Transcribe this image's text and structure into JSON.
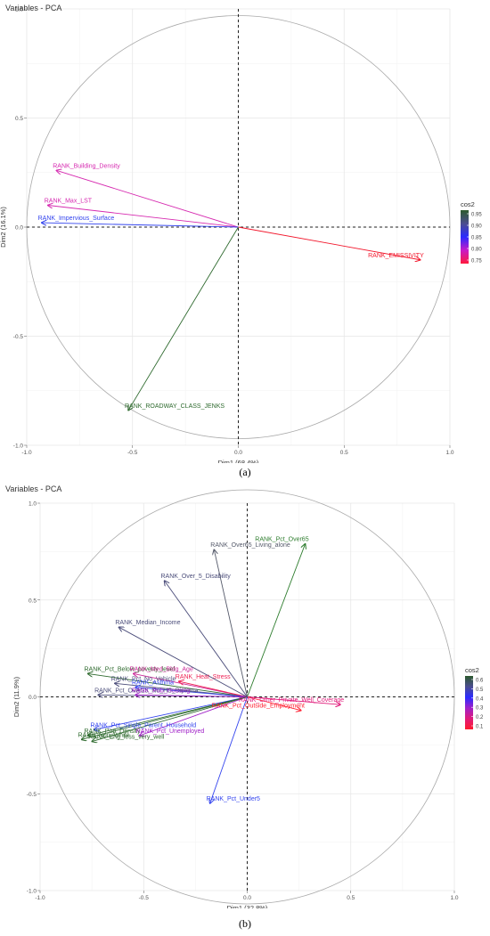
{
  "figure": {
    "caption_a": "(a)",
    "caption_b": "(b)"
  },
  "chart_data": [
    {
      "type": "scatter",
      "title": "Variables - PCA",
      "xlabel": "Dim1 (68.4%)",
      "ylabel": "Dim2 (16.1%)",
      "xlim": [
        -1.0,
        1.0
      ],
      "ylim": [
        -1.0,
        1.0
      ],
      "x_ticks": [
        "-1.0",
        "-0.5",
        "0.0",
        "0.5",
        "1.0"
      ],
      "y_ticks": [
        "-1.0",
        "-0.5",
        "0.0",
        "0.5",
        "1.0"
      ],
      "grid": true,
      "legend": {
        "title": "cos2",
        "placement": "right",
        "labels": [
          "0.95",
          "0.90",
          "0.85",
          "0.80",
          "0.75"
        ],
        "colors": [
          "#2d5a2d",
          "#4b4d8f",
          "#2a2aff",
          "#c81ac8",
          "#ff1a3c"
        ]
      },
      "vectors": [
        {
          "label": "RANK_Building_Density",
          "x": -0.86,
          "y": 0.26,
          "color": "#d62ab0"
        },
        {
          "label": "RANK_Max_LST",
          "x": -0.9,
          "y": 0.1,
          "color": "#d62ab0"
        },
        {
          "label": "RANK_Impervious_Surface",
          "x": -0.93,
          "y": 0.02,
          "color": "#3344ee"
        },
        {
          "label": "RANK_EMISSIVITY",
          "x": 0.86,
          "y": -0.15,
          "color": "#f2172c"
        },
        {
          "label": "RANK_ROADWAY_CLASS_JENKS",
          "x": -0.52,
          "y": -0.84,
          "color": "#2e6a2e"
        }
      ]
    },
    {
      "type": "scatter",
      "title": "Variables - PCA",
      "xlabel": "Dim1 (32.8%)",
      "ylabel": "Dim2 (11.9%)",
      "xlim": [
        -1.0,
        1.0
      ],
      "ylim": [
        -1.0,
        1.0
      ],
      "x_ticks": [
        "-1.0",
        "-0.5",
        "0.0",
        "0.5",
        "1.0"
      ],
      "y_ticks": [
        "-1.0",
        "-0.5",
        "0.0",
        "0.5",
        "1.0"
      ],
      "grid": true,
      "legend": {
        "title": "cos2",
        "placement": "right",
        "labels": [
          "0.6",
          "0.5",
          "0.4",
          "0.3",
          "0.2",
          "0.1"
        ],
        "colors": [
          "#2d5a2d",
          "#4b4d8f",
          "#2a2aff",
          "#a020c8",
          "#e01a7a",
          "#ff1a2c"
        ]
      },
      "vectors": [
        {
          "label": "RANK_Pct_Over65",
          "x": 0.28,
          "y": 0.79,
          "color": "#2e7d2e"
        },
        {
          "label": "RANK_Over65_Living_alone",
          "x": -0.16,
          "y": 0.76,
          "color": "#555a6a"
        },
        {
          "label": "RANK_Over_5_Disability",
          "x": -0.4,
          "y": 0.6,
          "color": "#4b4d7a"
        },
        {
          "label": "RANK_Median_Income",
          "x": -0.62,
          "y": 0.36,
          "color": "#4b4d7a"
        },
        {
          "label": "RANK_Pct_Below_poverty_level",
          "x": -0.77,
          "y": 0.12,
          "color": "#2e6a2e"
        },
        {
          "label": "RANK_Pct_No_Vehicle",
          "x": -0.64,
          "y": 0.07,
          "color": "#4b4d7a"
        },
        {
          "label": "RANK_Pct_Over25_No_HS_Diploma",
          "x": -0.72,
          "y": 0.01,
          "color": "#4b4d7a"
        },
        {
          "label": "RANK_Med_Bldg_Age",
          "x": -0.55,
          "y": 0.12,
          "color": "#cc2a9a"
        },
        {
          "label": "RANK_Heat_Stress",
          "x": -0.33,
          "y": 0.08,
          "color": "#ee2255"
        },
        {
          "label": "RANK_Asthma",
          "x": -0.54,
          "y": 0.05,
          "color": "#3344ee"
        },
        {
          "label": "RANK_Pub_Housing",
          "x": -0.54,
          "y": 0.01,
          "color": "#a020c8"
        },
        {
          "label": "RANK_Other_Private_Well_Coverage",
          "x": 0.45,
          "y": -0.04,
          "color": "#e01a7a"
        },
        {
          "label": "RANK_Pct_Outside_Employment",
          "x": 0.26,
          "y": -0.07,
          "color": "#ff1a2c"
        },
        {
          "label": "RANK_Pct_Single_Parent_Household",
          "x": -0.74,
          "y": -0.17,
          "color": "#3344ee"
        },
        {
          "label": "RANK_Pop_Density",
          "x": -0.77,
          "y": -0.2,
          "color": "#2e6a2e"
        },
        {
          "label": "RANK_Pct_Unemployed",
          "x": -0.52,
          "y": -0.2,
          "color": "#a020c8"
        },
        {
          "label": "RANK_Eng_less_very_well",
          "x": -0.75,
          "y": -0.23,
          "color": "#2e6a2e"
        },
        {
          "label": "RANK_Non_White",
          "x": -0.8,
          "y": -0.22,
          "color": "#2e6a2e"
        },
        {
          "label": "RANK_Pct_Under5",
          "x": -0.18,
          "y": -0.55,
          "color": "#3344ee"
        }
      ]
    }
  ]
}
